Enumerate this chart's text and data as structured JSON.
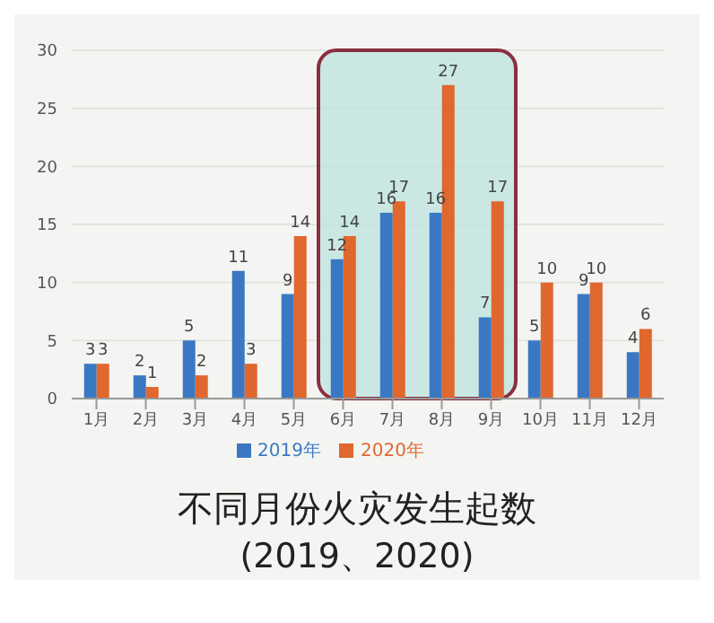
{
  "chart_data": {
    "type": "bar",
    "title": "不同月份火灾发生起数",
    "subtitle": "(2019、2020)",
    "categories": [
      "1月",
      "2月",
      "3月",
      "4月",
      "5月",
      "6月",
      "7月",
      "8月",
      "9月",
      "10月",
      "11月",
      "12月"
    ],
    "series": [
      {
        "name": "2019年",
        "color": "#3b78c3",
        "values": [
          3,
          2,
          5,
          11,
          9,
          12,
          16,
          16,
          7,
          5,
          9,
          4
        ]
      },
      {
        "name": "2020年",
        "color": "#e0672e",
        "values": [
          3,
          1,
          2,
          3,
          14,
          14,
          17,
          27,
          17,
          10,
          10,
          6
        ]
      }
    ],
    "ylim": [
      0,
      30
    ],
    "yticks": [
      0,
      5,
      10,
      15,
      20,
      25,
      30
    ],
    "grid": "y",
    "legend": "bottom",
    "data_labels": true,
    "bands": [
      {
        "axis": "x",
        "from": "6月",
        "to": "9月",
        "color": "#bfe3e0"
      }
    ]
  }
}
